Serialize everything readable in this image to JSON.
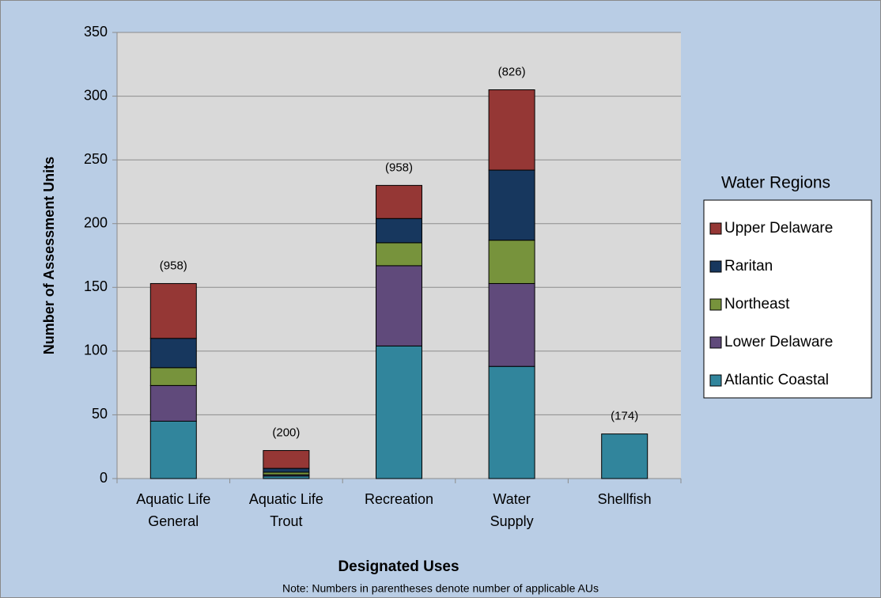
{
  "chart_data": {
    "type": "stacked_bar",
    "xlabel": "Designated Uses",
    "ylabel": "Number of Assessment Units",
    "legend_title": "Water Regions",
    "note": "Note: Numbers in parentheses denote number of applicable AUs",
    "categories": [
      "Aquatic Life\nGeneral",
      "Aquatic Life\nTrout",
      "Recreation",
      "Water\nSupply",
      "Shellfish"
    ],
    "annotations": [
      "(958)",
      "(200)",
      "(958)",
      "(826)",
      "(174)"
    ],
    "series": [
      {
        "name": "Atlantic Coastal",
        "color": "#31859c",
        "values": [
          45,
          2,
          104,
          88,
          35
        ]
      },
      {
        "name": "Lower Delaware",
        "color": "#604a7b",
        "values": [
          28,
          1,
          63,
          65,
          0
        ]
      },
      {
        "name": "Northeast",
        "color": "#77933c",
        "values": [
          14,
          2,
          18,
          34,
          0
        ]
      },
      {
        "name": "Raritan",
        "color": "#17375e",
        "values": [
          23,
          3,
          19,
          55,
          0
        ]
      },
      {
        "name": "Upper Delaware",
        "color": "#953735",
        "values": [
          43,
          14,
          26,
          63,
          0
        ]
      }
    ],
    "ylim": [
      0,
      350
    ],
    "yticks": [
      0,
      50,
      100,
      150,
      200,
      250,
      300,
      350
    ],
    "grid": true,
    "legend": "right"
  }
}
